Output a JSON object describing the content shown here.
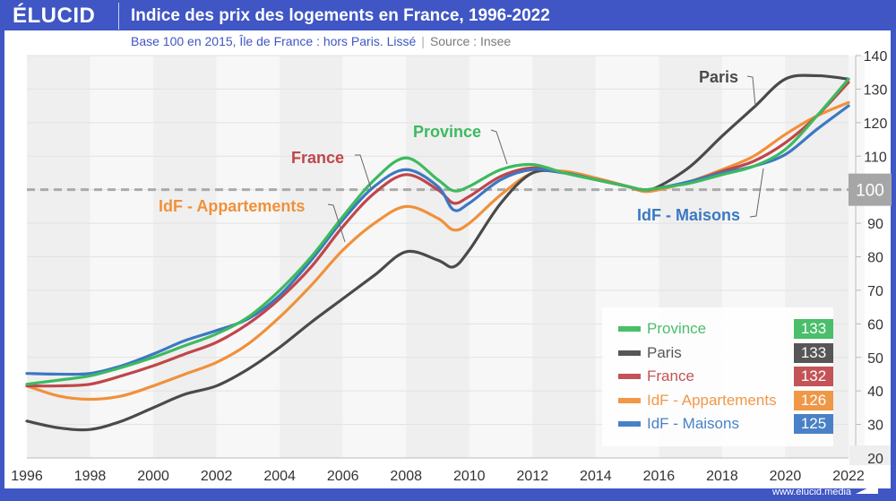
{
  "header": {
    "logo": "ÉLUCID",
    "title": "Indice des prix des logements en France, 1996-2022",
    "subtitle": "Base 100 en 2015, Île de France : hors Paris. Lissé",
    "separator": "|",
    "source": "Source : Insee"
  },
  "footer": {
    "url": "www.elucid.media"
  },
  "chart_data": {
    "type": "line",
    "title": "Indice des prix des logements en France, 1996-2022",
    "subtitle": "Base 100 en 2015, Île de France : hors Paris. Lissé",
    "xlabel": "",
    "ylabel": "",
    "xlim": [
      1996,
      2022
    ],
    "ylim": [
      20,
      140
    ],
    "x_ticks": [
      "1996",
      "1998",
      "2000",
      "2002",
      "2004",
      "2006",
      "2008",
      "2010",
      "2012",
      "2014",
      "2016",
      "2018",
      "2020",
      "2022"
    ],
    "y_ticks": [
      "20",
      "30",
      "40",
      "50",
      "60",
      "70",
      "80",
      "90",
      "100",
      "110",
      "120",
      "130",
      "140"
    ],
    "reference_line": {
      "value": 100,
      "label": "100",
      "style": "dashed"
    },
    "grid": true,
    "legend_position": "bottom-right",
    "x": [
      1996,
      1997,
      1998,
      1999,
      2000,
      2001,
      2002,
      2003,
      2004,
      2005,
      2006,
      2007,
      2008,
      2009,
      2009.5,
      2010,
      2011,
      2012,
      2013,
      2014,
      2015,
      2015.5,
      2016,
      2017,
      2018,
      2019,
      2020,
      2021,
      2022
    ],
    "series": [
      {
        "name": "Province",
        "color": "#3dba5f",
        "final": "133",
        "values": [
          42,
          43.2,
          44.5,
          47,
          50,
          53.5,
          57,
          62,
          70,
          80,
          92,
          103,
          109.5,
          103,
          99.7,
          101,
          106,
          107.5,
          105,
          103,
          101,
          100,
          100.5,
          102,
          104.5,
          107,
          112,
          122,
          133
        ]
      },
      {
        "name": "Paris",
        "color": "#4a4a4a",
        "final": "133",
        "values": [
          31,
          29,
          28.5,
          31,
          35,
          39,
          41.5,
          46.5,
          53,
          60.5,
          67.5,
          74.5,
          81.5,
          79,
          77,
          82,
          96,
          105,
          105,
          103,
          101,
          100,
          101,
          107,
          116,
          124.5,
          133,
          134,
          133
        ]
      },
      {
        "name": "France",
        "color": "#c0464a",
        "final": "132",
        "values": [
          41.5,
          41.5,
          42,
          44.5,
          47.5,
          51,
          54.5,
          60,
          67.5,
          77,
          89,
          99,
          104.5,
          100,
          96,
          98,
          104,
          106.5,
          105,
          103,
          101,
          100,
          100.5,
          102.5,
          105.5,
          108.5,
          114,
          122,
          132
        ]
      },
      {
        "name": "IdF - Appartements",
        "color": "#f0913a",
        "final": "126",
        "values": [
          41.5,
          38.5,
          37.5,
          38.5,
          41.5,
          45,
          48.5,
          54,
          62,
          71.5,
          82,
          90,
          95,
          91.5,
          88,
          90,
          98.5,
          105,
          105.5,
          103.5,
          101,
          99.5,
          100,
          102.5,
          106,
          110,
          116.5,
          122,
          126
        ]
      },
      {
        "name": "IdF - Maisons",
        "color": "#3b78c3",
        "final": "125",
        "values": [
          45.2,
          45,
          45.2,
          47.5,
          51,
          55,
          58,
          61.5,
          68.5,
          79,
          91,
          101,
          106,
          101,
          94,
          96,
          103,
          106,
          105,
          103,
          101,
          100,
          100.5,
          102.5,
          105,
          107,
          110.5,
          118,
          125
        ]
      }
    ],
    "annotations": [
      {
        "text": "Province",
        "series": "Province"
      },
      {
        "text": "France",
        "series": "France"
      },
      {
        "text": "IdF - Appartements",
        "series": "IdF - Appartements"
      },
      {
        "text": "Paris",
        "series": "Paris"
      },
      {
        "text": "IdF - Maisons",
        "series": "IdF - Maisons"
      }
    ]
  }
}
